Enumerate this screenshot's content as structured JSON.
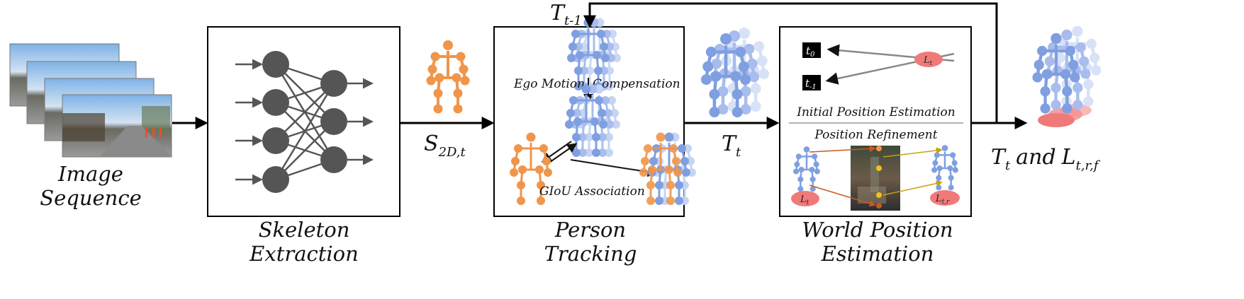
{
  "labels": {
    "image_sequence_1": "Image",
    "image_sequence_2": "Sequence",
    "skeleton_1": "Skeleton",
    "skeleton_2": "Extraction",
    "tracking_1": "Person",
    "tracking_2": "Tracking",
    "world_1": "World Position",
    "world_2": "Estimation",
    "ego_motion": "Ego Motion",
    "compensation": "Compensation",
    "giou": "GIoU Association",
    "initial_position": "Initial Position Estimation",
    "position_refinement": "Position Refinement"
  },
  "math": {
    "s2d_main": "S",
    "s2d_sub": "2D,t",
    "t_main": "T",
    "t_sub": "t",
    "tm1_main": "T",
    "tm1_sub": "t-1",
    "out_t_main": "T",
    "out_t_sub": "t",
    "out_and": "and",
    "out_l_main": "L",
    "out_l_sub": "t,r,f",
    "t0_main": "t",
    "t0_sub": "0",
    "tm1_box_main": "t",
    "tm1_box_sub": "-1",
    "lt_main": "L",
    "lt_sub": "t",
    "lt2_main": "L",
    "lt2_sub": "t",
    "ltr_main": "L",
    "ltr_sub": "t,r"
  },
  "colors": {
    "orange": "#f0954a",
    "blue": "#7f9fe0",
    "blue_light": "#c5d4f3",
    "red": "#f07a7a",
    "node": "#555555",
    "arrow_dark": "#333333",
    "gold": "#c8a010",
    "rust": "#c85a20"
  }
}
